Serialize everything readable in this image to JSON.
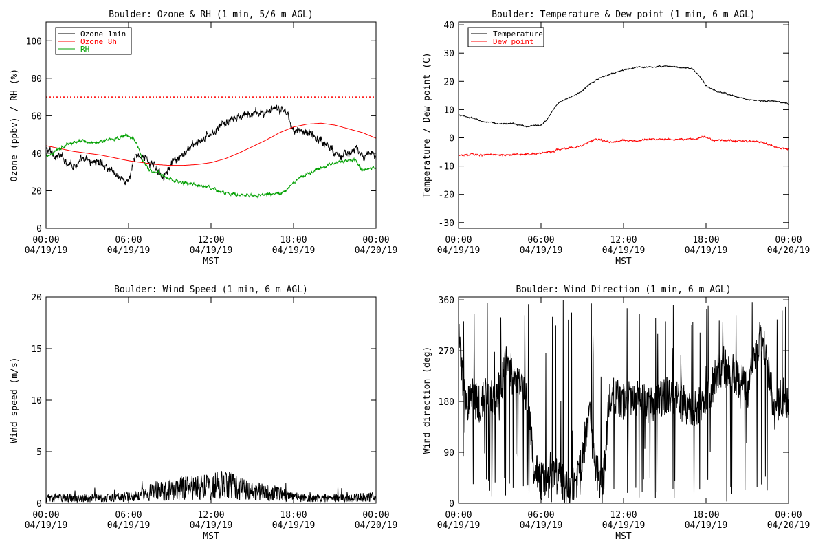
{
  "chart_data": [
    {
      "type": "line",
      "title": "Boulder: Ozone & RH (1 min, 5/6 m AGL)",
      "xlabel": "",
      "ylabel": "Ozone (ppbv) / RH (%)",
      "xlim": [
        0,
        24
      ],
      "ylim": [
        0,
        110
      ],
      "yticks": [
        0,
        20,
        40,
        60,
        80,
        100
      ],
      "grid": false,
      "legend": "top-left",
      "reference_line": {
        "y": 70,
        "color": "#ff0000",
        "style": "dotted"
      },
      "series": [
        {
          "name": "Ozone 1min",
          "color": "#000000",
          "noise": 2.5,
          "points": [
            [
              0,
              42
            ],
            [
              1,
              38
            ],
            [
              2,
              34
            ],
            [
              3,
              36
            ],
            [
              4,
              35
            ],
            [
              5,
              30
            ],
            [
              5.5,
              26
            ],
            [
              6,
              25
            ],
            [
              6.5,
              38
            ],
            [
              7,
              39
            ],
            [
              8,
              32
            ],
            [
              8.5,
              29
            ],
            [
              9,
              33
            ],
            [
              9.5,
              36
            ],
            [
              10,
              38
            ],
            [
              10.5,
              44
            ],
            [
              11,
              45
            ],
            [
              12,
              50
            ],
            [
              13,
              56
            ],
            [
              14,
              59
            ],
            [
              15,
              61
            ],
            [
              16,
              62
            ],
            [
              17,
              63
            ],
            [
              17.5,
              62
            ],
            [
              18,
              53
            ],
            [
              19,
              51
            ],
            [
              20,
              47
            ],
            [
              21,
              41
            ],
            [
              21.5,
              40
            ],
            [
              22,
              38
            ],
            [
              22.5,
              44
            ],
            [
              23,
              37
            ],
            [
              24,
              40
            ]
          ]
        },
        {
          "name": "Ozone 8h",
          "color": "#ff0000",
          "noise": 0,
          "points": [
            [
              0,
              44
            ],
            [
              2,
              41
            ],
            [
              4,
              39
            ],
            [
              6,
              36
            ],
            [
              8,
              34
            ],
            [
              9,
              33.5
            ],
            [
              10,
              33.5
            ],
            [
              11,
              34
            ],
            [
              12,
              35
            ],
            [
              13,
              37
            ],
            [
              14,
              40
            ],
            [
              15,
              43.5
            ],
            [
              16,
              47
            ],
            [
              17,
              51
            ],
            [
              18,
              54
            ],
            [
              19,
              55.5
            ],
            [
              20,
              56
            ],
            [
              21,
              55
            ],
            [
              22,
              53
            ],
            [
              23,
              51
            ],
            [
              24,
              48
            ]
          ]
        },
        {
          "name": "RH",
          "color": "#00a000",
          "noise": 1,
          "points": [
            [
              0,
              38
            ],
            [
              1,
              43
            ],
            [
              2,
              46
            ],
            [
              3,
              46
            ],
            [
              4,
              46
            ],
            [
              5,
              48
            ],
            [
              5.5,
              49
            ],
            [
              6,
              49
            ],
            [
              6.5,
              47
            ],
            [
              7,
              37
            ],
            [
              7.5,
              31
            ],
            [
              8,
              30
            ],
            [
              9,
              26
            ],
            [
              10,
              24
            ],
            [
              11,
              23
            ],
            [
              12,
              21
            ],
            [
              13,
              19
            ],
            [
              14,
              18
            ],
            [
              15,
              17.5
            ],
            [
              16,
              18
            ],
            [
              17,
              18
            ],
            [
              17.5,
              20
            ],
            [
              18,
              24
            ],
            [
              18.5,
              27
            ],
            [
              19,
              29
            ],
            [
              20,
              32
            ],
            [
              21,
              35
            ],
            [
              22,
              36
            ],
            [
              22.5,
              37
            ],
            [
              23,
              31
            ],
            [
              24,
              32
            ]
          ]
        }
      ]
    },
    {
      "type": "line",
      "title": "Boulder: Temperature & Dew point (1 min, 6 m AGL)",
      "xlabel": "",
      "ylabel": "Temperature / Dew point (C)",
      "xlim": [
        0,
        24
      ],
      "ylim": [
        -32,
        41
      ],
      "yticks": [
        -30,
        -20,
        -10,
        0,
        10,
        20,
        30,
        40
      ],
      "grid": false,
      "legend": "top-left",
      "series": [
        {
          "name": "Temperature",
          "color": "#000000",
          "noise": 0.25,
          "points": [
            [
              0,
              8
            ],
            [
              1,
              7
            ],
            [
              2,
              5.5
            ],
            [
              3,
              5
            ],
            [
              4,
              5
            ],
            [
              5,
              4
            ],
            [
              6,
              4.5
            ],
            [
              6.5,
              7
            ],
            [
              7,
              11
            ],
            [
              7.5,
              13
            ],
            [
              8,
              14
            ],
            [
              9,
              16.5
            ],
            [
              9.5,
              19
            ],
            [
              10,
              20.5
            ],
            [
              11,
              22.5
            ],
            [
              12,
              24
            ],
            [
              13,
              25
            ],
            [
              14,
              25
            ],
            [
              15,
              25.5
            ],
            [
              16,
              25
            ],
            [
              17,
              24.5
            ],
            [
              17.5,
              22
            ],
            [
              18,
              18.5
            ],
            [
              18.5,
              17
            ],
            [
              19,
              16
            ],
            [
              20,
              15
            ],
            [
              21,
              13.5
            ],
            [
              22,
              13
            ],
            [
              23,
              13
            ],
            [
              24,
              12
            ]
          ]
        },
        {
          "name": "Dew point",
          "color": "#ff0000",
          "noise": 0.35,
          "points": [
            [
              0,
              -6
            ],
            [
              2,
              -6
            ],
            [
              4,
              -6
            ],
            [
              6,
              -5.5
            ],
            [
              7,
              -4.5
            ],
            [
              8,
              -3.5
            ],
            [
              9,
              -3
            ],
            [
              9.5,
              -1.5
            ],
            [
              10,
              -0.5
            ],
            [
              11,
              -1.5
            ],
            [
              12,
              -1
            ],
            [
              13,
              -1
            ],
            [
              14,
              -0.5
            ],
            [
              15,
              -0.5
            ],
            [
              16,
              -0.5
            ],
            [
              17,
              -0.5
            ],
            [
              18,
              0.5
            ],
            [
              18.5,
              -1
            ],
            [
              19,
              -1
            ],
            [
              20,
              -1
            ],
            [
              21,
              -1
            ],
            [
              22,
              -1.5
            ],
            [
              23,
              -3
            ],
            [
              24,
              -4
            ]
          ]
        }
      ]
    },
    {
      "type": "line",
      "title": "Boulder: Wind Speed (1 min, 6 m AGL)",
      "xlabel": "MST",
      "ylabel": "Wind speed (m/s)",
      "xlim": [
        0,
        24
      ],
      "ylim": [
        0,
        20
      ],
      "yticks": [
        0,
        5,
        10,
        15,
        20
      ],
      "grid": false,
      "series": [
        {
          "name": "",
          "color": "#000000",
          "noise": 0.5,
          "floor": 0,
          "points": [
            [
              0,
              0.5
            ],
            [
              2,
              0.5
            ],
            [
              4,
              0.5
            ],
            [
              6,
              0.6
            ],
            [
              7,
              0.8
            ],
            [
              8,
              1.2
            ],
            [
              9,
              1.3
            ],
            [
              10,
              1.5
            ],
            [
              11,
              1.5
            ],
            [
              12,
              1.6
            ],
            [
              13,
              1.8
            ],
            [
              14,
              1.6
            ],
            [
              15,
              1.2
            ],
            [
              16,
              1
            ],
            [
              17,
              0.9
            ],
            [
              18,
              0.6
            ],
            [
              19,
              0.5
            ],
            [
              20,
              0.5
            ],
            [
              22,
              0.5
            ],
            [
              24,
              0.6
            ]
          ]
        }
      ]
    },
    {
      "type": "line",
      "title": "Boulder: Wind Direction (1 min, 6 m AGL)",
      "xlabel": "MST",
      "ylabel": "Wind direction (deg)",
      "xlim": [
        0,
        24
      ],
      "ylim": [
        0,
        365
      ],
      "yticks": [
        0,
        90,
        180,
        270,
        360
      ],
      "grid": false,
      "series": [
        {
          "name": "",
          "color": "#000000",
          "noise": 0,
          "points": [
            [
              0,
              300
            ],
            [
              0.3,
              220
            ],
            [
              0.6,
              180
            ],
            [
              1,
              190
            ],
            [
              1.5,
              175
            ],
            [
              2,
              195
            ],
            [
              2.5,
              180
            ],
            [
              3,
              200
            ],
            [
              3.5,
              250
            ],
            [
              4,
              220
            ],
            [
              4.5,
              210
            ],
            [
              5,
              180
            ],
            [
              5.5,
              60
            ],
            [
              6,
              40
            ],
            [
              6.5,
              30
            ],
            [
              7,
              50
            ],
            [
              7.5,
              40
            ],
            [
              8,
              20
            ],
            [
              8.5,
              30
            ],
            [
              9,
              80
            ],
            [
              9.5,
              160
            ],
            [
              10,
              60
            ],
            [
              10.5,
              30
            ],
            [
              11,
              190
            ],
            [
              12,
              180
            ],
            [
              13,
              190
            ],
            [
              14,
              170
            ],
            [
              15,
              190
            ],
            [
              16,
              180
            ],
            [
              17,
              170
            ],
            [
              18,
              180
            ],
            [
              19,
              240
            ],
            [
              19.5,
              230
            ],
            [
              20,
              230
            ],
            [
              21,
              200
            ],
            [
              21.5,
              260
            ],
            [
              22,
              300
            ],
            [
              22.5,
              240
            ],
            [
              23,
              160
            ],
            [
              23.5,
              190
            ],
            [
              24,
              180
            ]
          ]
        }
      ]
    }
  ],
  "x_ticks": [
    {
      "time": "00:00",
      "date": "04/19/19"
    },
    {
      "time": "06:00",
      "date": "04/19/19"
    },
    {
      "time": "12:00",
      "date": "04/19/19"
    },
    {
      "time": "18:00",
      "date": "04/19/19"
    },
    {
      "time": "00:00",
      "date": "04/20/19"
    }
  ],
  "upper_xlabel": "MST"
}
